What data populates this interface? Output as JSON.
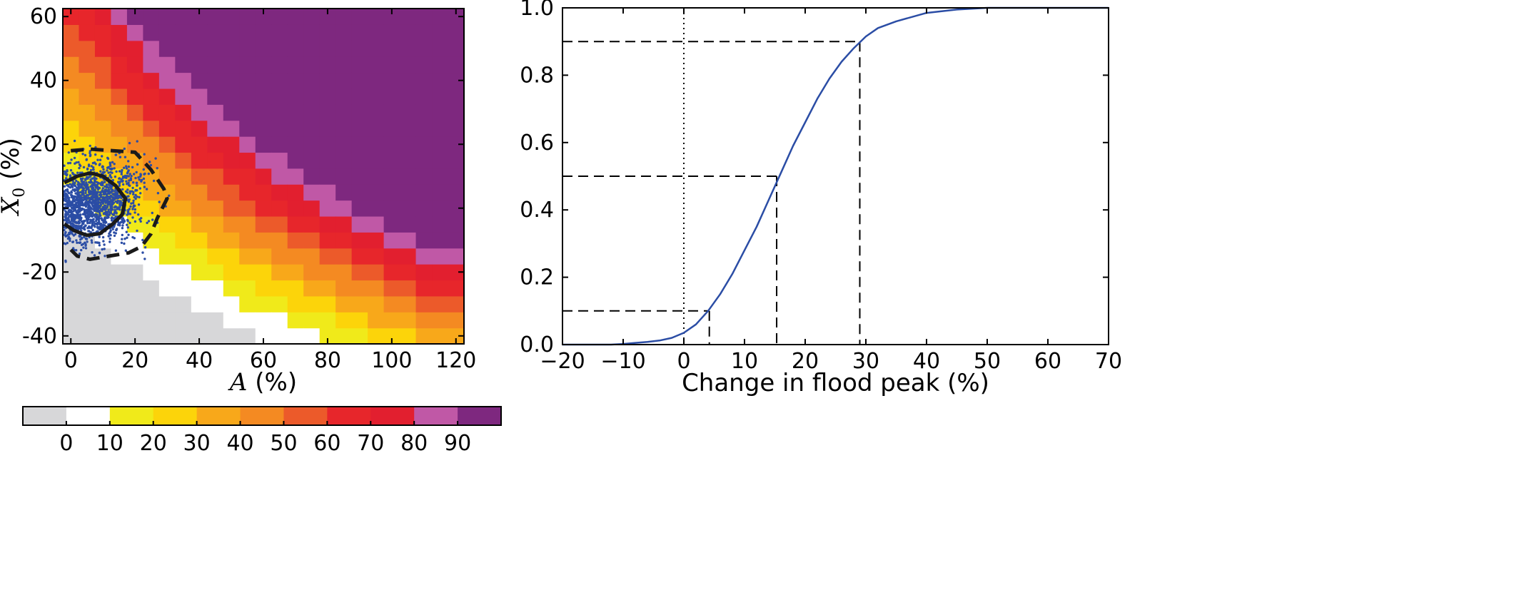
{
  "chart_data": [
    {
      "type": "heatmap",
      "xlabel_var": "A",
      "xlabel_unit": " (%)",
      "ylabel_var": "X",
      "ylabel_sub": "0",
      "ylabel_unit": " (%)",
      "xlim": [
        -2.5,
        122.5
      ],
      "ylim": [
        -42.5,
        62.5
      ],
      "xticks": [
        0,
        20,
        40,
        60,
        80,
        100,
        120
      ],
      "yticks": [
        -40,
        -20,
        0,
        20,
        40,
        60
      ],
      "xtick_labels": [
        "0",
        "20",
        "40",
        "60",
        "80",
        "100",
        "120"
      ],
      "ytick_labels": [
        "-40",
        "-20",
        "0",
        "20",
        "40",
        "60"
      ],
      "cell_size": 5,
      "value_model": "value ≈ A + X0 + 0.009·A·X0 (% change), binned into 10% classes",
      "colorbar": {
        "boundaries": [
          -10,
          0,
          10,
          20,
          30,
          40,
          50,
          60,
          70,
          80,
          90,
          100
        ],
        "tick_labels": [
          "0",
          "10",
          "20",
          "30",
          "40",
          "50",
          "60",
          "70",
          "80",
          "90"
        ],
        "colors": [
          "#d7d7d9",
          "#ffffff",
          "#f0ea1a",
          "#fcd40a",
          "#f8a81a",
          "#f48a22",
          "#ec5a2a",
          "#e7262b",
          "#e21f2f",
          "#c058a6",
          "#7e287f"
        ]
      },
      "scatter": {
        "color": "#2b4da5",
        "n_points": 1900,
        "center": [
          5,
          1
        ],
        "spread": [
          7.5,
          6.5
        ]
      },
      "contours": [
        {
          "style": "solid",
          "points": [
            [
              -2,
              8
            ],
            [
              2,
              10
            ],
            [
              6,
              11
            ],
            [
              10,
              10
            ],
            [
              14,
              7
            ],
            [
              17,
              3
            ],
            [
              16,
              -2
            ],
            [
              13,
              -5
            ],
            [
              9,
              -8
            ],
            [
              5,
              -8.5
            ],
            [
              1,
              -7
            ],
            [
              -2,
              -5
            ]
          ]
        },
        {
          "style": "dashed",
          "points": [
            [
              0,
              18
            ],
            [
              6,
              18.5
            ],
            [
              13,
              18
            ],
            [
              20,
              17.5
            ],
            [
              25,
              12
            ],
            [
              29,
              6
            ],
            [
              30,
              3
            ],
            [
              27,
              -3
            ],
            [
              25,
              -8
            ],
            [
              22,
              -12
            ],
            [
              18,
              -14
            ],
            [
              12,
              -15
            ],
            [
              6,
              -16
            ],
            [
              2,
              -15
            ],
            [
              0,
              -13
            ]
          ]
        }
      ]
    },
    {
      "type": "line",
      "xlabel": "Change in flood peak (%)",
      "ylabel": "",
      "xlim": [
        -20,
        70
      ],
      "ylim": [
        0.0,
        1.0
      ],
      "xticks": [
        -20,
        -10,
        0,
        10,
        20,
        30,
        40,
        50,
        60,
        70
      ],
      "xtick_labels": [
        "−20",
        "−10",
        "0",
        "10",
        "20",
        "30",
        "40",
        "50",
        "60",
        "70"
      ],
      "yticks": [
        0.0,
        0.2,
        0.4,
        0.6,
        0.8,
        1.0
      ],
      "ytick_labels": [
        "0.0",
        "0.2",
        "0.4",
        "0.6",
        "0.8",
        "1.0"
      ],
      "series": [
        {
          "color": "#2b4da5",
          "x": [
            -20,
            -12,
            -10,
            -8,
            -6,
            -4,
            -2,
            0,
            2,
            4,
            6,
            8,
            10,
            12,
            14,
            16,
            18,
            20,
            22,
            24,
            26,
            28,
            30,
            32,
            35,
            40,
            45,
            50,
            60,
            70
          ],
          "y": [
            0.0,
            0.0,
            0.002,
            0.005,
            0.008,
            0.012,
            0.02,
            0.035,
            0.06,
            0.1,
            0.15,
            0.21,
            0.28,
            0.35,
            0.43,
            0.51,
            0.59,
            0.66,
            0.73,
            0.79,
            0.84,
            0.88,
            0.915,
            0.94,
            0.96,
            0.985,
            0.995,
            1.0,
            1.0,
            1.0
          ]
        }
      ],
      "reference_lines": [
        {
          "style": "dashed",
          "x": 4.2,
          "y": 0.1
        },
        {
          "style": "dashed",
          "x": 15.3,
          "y": 0.5
        },
        {
          "style": "dashed",
          "x": 29.0,
          "y": 0.9
        },
        {
          "style": "dotted",
          "x": 0
        }
      ]
    }
  ]
}
